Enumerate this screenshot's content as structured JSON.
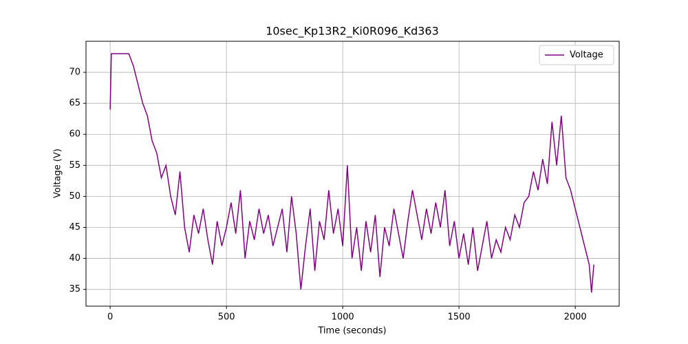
{
  "chart_data": {
    "type": "line",
    "title": "10sec_Kp13R2_Ki0R096_Kd363",
    "x_label": "Time (seconds)",
    "y_label": "Voltage (V)",
    "x": [
      0,
      5,
      20,
      40,
      60,
      80,
      100,
      120,
      140,
      160,
      180,
      200,
      220,
      240,
      260,
      280,
      300,
      320,
      340,
      360,
      380,
      400,
      420,
      440,
      460,
      480,
      500,
      520,
      540,
      560,
      580,
      600,
      620,
      640,
      660,
      680,
      700,
      720,
      740,
      760,
      780,
      800,
      820,
      840,
      860,
      880,
      900,
      920,
      940,
      960,
      980,
      1000,
      1020,
      1040,
      1060,
      1080,
      1100,
      1120,
      1140,
      1160,
      1180,
      1200,
      1220,
      1240,
      1260,
      1280,
      1300,
      1320,
      1340,
      1360,
      1380,
      1400,
      1420,
      1440,
      1460,
      1480,
      1500,
      1520,
      1540,
      1560,
      1580,
      1600,
      1620,
      1640,
      1660,
      1680,
      1700,
      1720,
      1740,
      1760,
      1780,
      1800,
      1820,
      1840,
      1860,
      1880,
      1900,
      1920,
      1940,
      1960,
      1980,
      2000,
      2020,
      2040,
      2060,
      2070,
      2080
    ],
    "series": [
      {
        "name": "Voltage",
        "color": "#800080",
        "values": [
          64,
          73,
          73,
          73,
          73,
          73,
          71,
          68,
          65,
          63,
          59,
          57,
          53,
          55,
          50,
          47,
          54,
          45,
          41,
          47,
          44,
          48,
          43,
          39,
          46,
          42,
          45,
          49,
          44,
          51,
          40,
          46,
          43,
          48,
          44,
          47,
          42,
          45,
          48,
          41,
          50,
          44,
          35,
          42,
          48,
          38,
          46,
          43,
          51,
          44,
          48,
          42,
          55,
          40,
          45,
          38,
          46,
          41,
          47,
          37,
          45,
          42,
          48,
          44,
          40,
          46,
          51,
          47,
          43,
          48,
          44,
          49,
          45,
          51,
          42,
          46,
          40,
          44,
          39,
          45,
          38,
          42,
          46,
          40,
          43,
          41,
          45,
          43,
          47,
          45,
          49,
          50,
          54,
          51,
          56,
          52,
          62,
          55,
          63,
          53,
          51,
          48,
          45,
          42,
          39,
          34.5,
          39
        ]
      }
    ],
    "xlim": [
      -104,
      2189
    ],
    "ylim": [
      32.3,
      75
    ],
    "xticks": [
      0,
      500,
      1000,
      1500,
      2000
    ],
    "yticks": [
      35,
      40,
      45,
      50,
      55,
      60,
      65,
      70
    ],
    "grid": true,
    "legend": "upper right"
  }
}
